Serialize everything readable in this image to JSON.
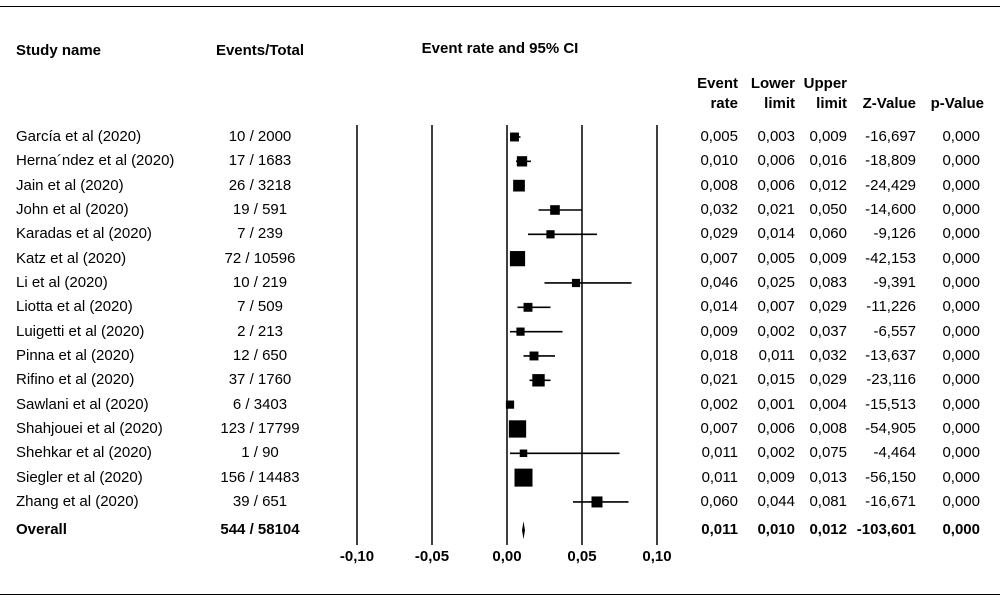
{
  "headers": {
    "study_name": "Study name",
    "events_total": "Events/Total",
    "plot_title": "Event rate and 95% CI",
    "event_rate_l1": "Event",
    "event_rate_l2": "rate",
    "lower_l1": "Lower",
    "lower_l2": "limit",
    "upper_l1": "Upper",
    "upper_l2": "limit",
    "z_value": "Z-Value",
    "p_value": "p-Value"
  },
  "chart_data": {
    "type": "forest",
    "title": "Event rate and 95% CI",
    "x_range": [
      -0.1,
      0.1
    ],
    "x_ticks": [
      -0.1,
      -0.05,
      0.0,
      0.05,
      0.1
    ],
    "x_tick_labels": [
      "-0,10",
      "-0,05",
      "0,00",
      "0,05",
      "0,10"
    ],
    "reference_line": 0.0,
    "rows": [
      {
        "study": "García et al (2020)",
        "events": "10 / 2000",
        "rate": 0.005,
        "lower": 0.003,
        "upper": 0.009,
        "z": "-16,697",
        "p": "0,000",
        "rate_s": "0,005",
        "lower_s": "0,003",
        "upper_s": "0,009",
        "weight": 0.35
      },
      {
        "study": "Herna´ndez et al (2020)",
        "events": "17 / 1683",
        "rate": 0.01,
        "lower": 0.006,
        "upper": 0.016,
        "z": "-18,809",
        "p": "0,000",
        "rate_s": "0,010",
        "lower_s": "0,006",
        "upper_s": "0,016",
        "weight": 0.45
      },
      {
        "study": "Jain et al (2020)",
        "events": "26 / 3218",
        "rate": 0.008,
        "lower": 0.006,
        "upper": 0.012,
        "z": "-24,429",
        "p": "0,000",
        "rate_s": "0,008",
        "lower_s": "0,006",
        "upper_s": "0,012",
        "weight": 0.55
      },
      {
        "study": "John et al (2020)",
        "events": "19 / 591",
        "rate": 0.032,
        "lower": 0.021,
        "upper": 0.05,
        "z": "-14,600",
        "p": "0,000",
        "rate_s": "0,032",
        "lower_s": "0,021",
        "upper_s": "0,050",
        "weight": 0.4
      },
      {
        "study": "Karadas et al (2020)",
        "events": "7 / 239",
        "rate": 0.029,
        "lower": 0.014,
        "upper": 0.06,
        "z": "-9,126",
        "p": "0,000",
        "rate_s": "0,029",
        "lower_s": "0,014",
        "upper_s": "0,060",
        "weight": 0.3
      },
      {
        "study": "Katz et al (2020)",
        "events": "72 / 10596",
        "rate": 0.007,
        "lower": 0.005,
        "upper": 0.009,
        "z": "-42,153",
        "p": "0,000",
        "rate_s": "0,007",
        "lower_s": "0,005",
        "upper_s": "0,009",
        "weight": 0.8
      },
      {
        "study": "Li et al (2020)",
        "events": "10 / 219",
        "rate": 0.046,
        "lower": 0.025,
        "upper": 0.083,
        "z": "-9,391",
        "p": "0,000",
        "rate_s": "0,046",
        "lower_s": "0,025",
        "upper_s": "0,083",
        "weight": 0.3
      },
      {
        "study": "Liotta et al (2020)",
        "events": "7 / 509",
        "rate": 0.014,
        "lower": 0.007,
        "upper": 0.029,
        "z": "-11,226",
        "p": "0,000",
        "rate_s": "0,014",
        "lower_s": "0,007",
        "upper_s": "0,029",
        "weight": 0.35
      },
      {
        "study": "Luigetti et al (2020)",
        "events": "2 / 213",
        "rate": 0.009,
        "lower": 0.002,
        "upper": 0.037,
        "z": "-6,557",
        "p": "0,000",
        "rate_s": "0,009",
        "lower_s": "0,002",
        "upper_s": "0,037",
        "weight": 0.3
      },
      {
        "study": "Pinna et al (2020)",
        "events": "12 / 650",
        "rate": 0.018,
        "lower": 0.011,
        "upper": 0.032,
        "z": "-13,637",
        "p": "0,000",
        "rate_s": "0,018",
        "lower_s": "0,011",
        "upper_s": "0,032",
        "weight": 0.35
      },
      {
        "study": "Rifino et al (2020)",
        "events": "37 / 1760",
        "rate": 0.021,
        "lower": 0.015,
        "upper": 0.029,
        "z": "-23,116",
        "p": "0,000",
        "rate_s": "0,021",
        "lower_s": "0,015",
        "upper_s": "0,029",
        "weight": 0.6
      },
      {
        "study": "Sawlani et al (2020)",
        "events": "6 / 3403",
        "rate": 0.002,
        "lower": 0.001,
        "upper": 0.004,
        "z": "-15,513",
        "p": "0,000",
        "rate_s": "0,002",
        "lower_s": "0,001",
        "upper_s": "0,004",
        "weight": 0.3
      },
      {
        "study": "Shahjouei et al (2020)",
        "events": "123 / 17799",
        "rate": 0.007,
        "lower": 0.006,
        "upper": 0.008,
        "z": "-54,905",
        "p": "0,000",
        "rate_s": "0,007",
        "lower_s": "0,006",
        "upper_s": "0,008",
        "weight": 0.95
      },
      {
        "study": "Shehkar et al (2020)",
        "events": "1 / 90",
        "rate": 0.011,
        "lower": 0.002,
        "upper": 0.075,
        "z": "-4,464",
        "p": "0,000",
        "rate_s": "0,011",
        "lower_s": "0,002",
        "upper_s": "0,075",
        "weight": 0.25
      },
      {
        "study": "Siegler et al (2020)",
        "events": "156 / 14483",
        "rate": 0.011,
        "lower": 0.009,
        "upper": 0.013,
        "z": "-56,150",
        "p": "0,000",
        "rate_s": "0,011",
        "lower_s": "0,009",
        "upper_s": "0,013",
        "weight": 1.0
      },
      {
        "study": "Zhang et al (2020)",
        "events": "39 / 651",
        "rate": 0.06,
        "lower": 0.044,
        "upper": 0.081,
        "z": "-16,671",
        "p": "0,000",
        "rate_s": "0,060",
        "lower_s": "0,044",
        "upper_s": "0,081",
        "weight": 0.5
      }
    ],
    "overall": {
      "study": "Overall",
      "events": "544 / 58104",
      "rate": 0.011,
      "lower": 0.01,
      "upper": 0.012,
      "z": "-103,601",
      "p": "0,000",
      "rate_s": "0,011",
      "lower_s": "0,010",
      "upper_s": "0,012"
    }
  }
}
